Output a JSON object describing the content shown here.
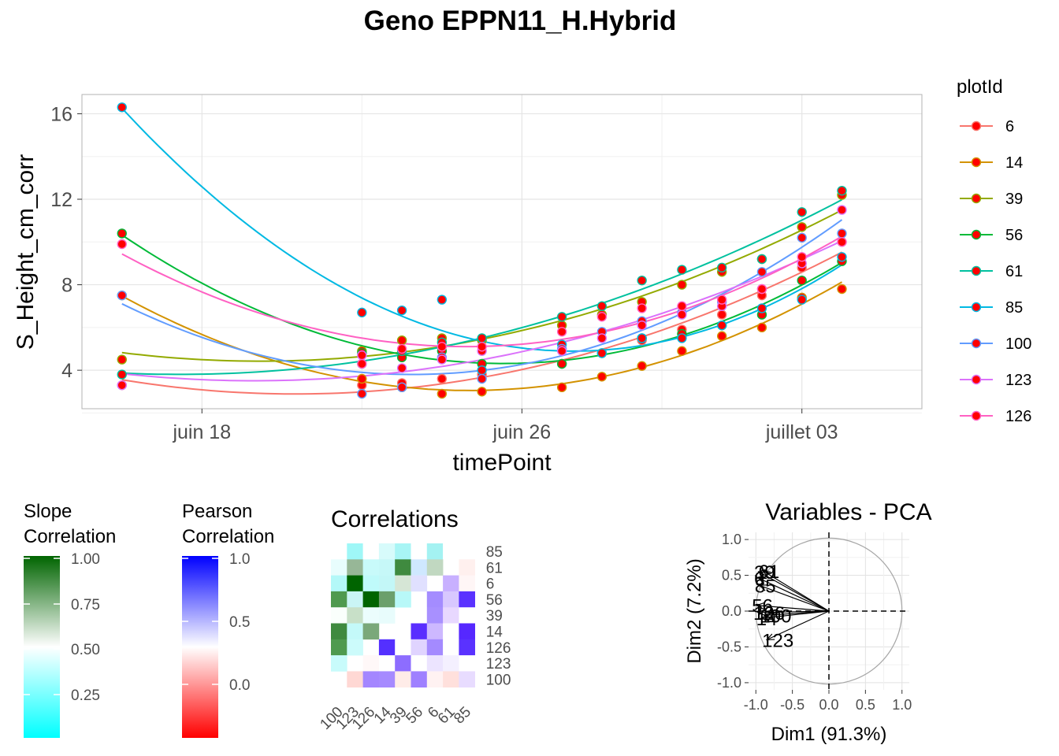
{
  "title": "Geno EPPN11_H.Hybrid",
  "colors": {
    "point": "#ff0000",
    "grid": "#e5e5e5",
    "panel_border": "#b3b3b3"
  },
  "chart_data": [
    {
      "type": "line",
      "xlabel": "timePoint",
      "ylabel": "S_Height_cm_corr",
      "x_tick_labels": [
        "juin 18",
        "juin 26",
        "juillet 03"
      ],
      "y_ticks": [
        4,
        8,
        12,
        16
      ],
      "xlim": [
        "2019-06-15",
        "2019-07-06"
      ],
      "ylim": [
        2.2,
        16.9
      ],
      "x_dates": [
        "2019-06-16",
        "2019-06-22",
        "2019-06-23",
        "2019-06-24",
        "2019-06-25",
        "2019-06-27",
        "2019-06-28",
        "2019-06-29",
        "2019-06-30",
        "2019-07-01",
        "2019-07-02",
        "2019-07-03",
        "2019-07-04"
      ],
      "legend": {
        "title": "plotId",
        "position": "right"
      },
      "series": [
        {
          "name": "6",
          "color": "#F8766D",
          "values": [
            3.3,
            3.3,
            3.4,
            3.6,
            3.8,
            4.3,
            4.8,
            5.4,
            5.9,
            6.6,
            7.5,
            8.8,
            10.0
          ]
        },
        {
          "name": "14",
          "color": "#D39200",
          "values": [
            7.5,
            3.6,
            3.2,
            2.9,
            3.0,
            3.2,
            3.7,
            4.2,
            4.9,
            5.6,
            6.0,
            7.4,
            7.8
          ]
        },
        {
          "name": "39",
          "color": "#93AA00",
          "values": [
            4.5,
            4.9,
            5.4,
            5.5,
            5.4,
            6.1,
            6.6,
            7.2,
            8.0,
            8.6,
            9.2,
            10.7,
            12.2
          ]
        },
        {
          "name": "56",
          "color": "#00BA38",
          "values": [
            10.4,
            4.8,
            4.6,
            4.9,
            4.3,
            4.3,
            4.8,
            5.5,
            5.7,
            6.1,
            6.6,
            8.2,
            9.1
          ]
        },
        {
          "name": "61",
          "color": "#00C19F",
          "values": [
            3.8,
            4.3,
            4.9,
            5.3,
            5.5,
            6.5,
            7.0,
            8.2,
            8.7,
            8.8,
            9.2,
            11.4,
            12.4
          ]
        },
        {
          "name": "85",
          "color": "#00B9E3",
          "values": [
            16.3,
            6.7,
            6.8,
            7.3,
            4.0,
            5.2,
            4.8,
            5.5,
            5.5,
            6.1,
            6.9,
            7.3,
            9.3
          ]
        },
        {
          "name": "100",
          "color": "#619CFF",
          "values": [
            7.5,
            2.9,
            3.2,
            4.6,
            3.6,
            5.0,
            5.8,
            6.3,
            6.7,
            7.2,
            8.6,
            10.2,
            10.4
          ]
        },
        {
          "name": "123",
          "color": "#DB72FB",
          "values": [
            3.3,
            4.7,
            4.1,
            4.5,
            4.9,
            4.9,
            5.5,
            6.1,
            6.6,
            7.0,
            7.8,
            9.0,
            11.5
          ]
        },
        {
          "name": "126",
          "color": "#FF61C3",
          "values": [
            9.9,
            4.3,
            5.0,
            5.1,
            5.1,
            5.8,
            6.5,
            6.9,
            7.0,
            7.3,
            7.8,
            9.3,
            10.0
          ]
        }
      ]
    },
    {
      "type": "heatmap",
      "title": "Correlations",
      "categories": [
        "100",
        "123",
        "126",
        "14",
        "39",
        "56",
        "6",
        "61",
        "85"
      ],
      "row_labels": [
        "85",
        "61",
        "6",
        "56",
        "39",
        "14",
        "126",
        "123",
        "100"
      ],
      "legends": [
        {
          "title": [
            "Slope",
            "Correlation"
          ],
          "ticks": [
            "1.00",
            "0.75",
            "0.50",
            "0.25"
          ],
          "colors": [
            "#006400",
            "#ffffff",
            "#00ffff"
          ]
        },
        {
          "title": [
            "Pearson",
            "Correlation"
          ],
          "ticks": [
            "1.0",
            "0.5",
            "0.0"
          ],
          "colors": [
            "#0000ff",
            "#ffffff",
            "#ff0000"
          ]
        }
      ],
      "cells": [
        [
          "#ffffff",
          "#9ff7f7",
          "#ffffff",
          "#d7fbfb",
          "#a8f5f5",
          "#ffffff",
          "#a4f2f2",
          "#ffffff",
          null
        ],
        [
          "#e8fdfd",
          "#97b797",
          "#c8fafa",
          "#c6f8f8",
          "#3f8a3f",
          "#cfe8ff",
          "#c1d8c1",
          null,
          "#fff0ee"
        ],
        [
          "#b3f8f8",
          "#006400",
          "#bffafa",
          "#c3f7f7",
          "#d6e6d6",
          "#e0e0ff",
          null,
          "#c8b0ff",
          "#fff6f6"
        ],
        [
          "#4f9a4f",
          "#caf5f5",
          "#006400",
          "#6b9f6b",
          "#b8f8f8",
          null,
          "#a48cff",
          "#d8c8ff",
          "#5a32ff"
        ],
        [
          "#fafffc",
          "#c8e0c8",
          "#ebfdfd",
          "#e8fcfc",
          null,
          "#ffffff",
          "#a890ff",
          "#e8d8ff",
          "#ffffff"
        ],
        [
          "#3f8a3f",
          "#c4f9f9",
          "#7aa87a",
          null,
          "#ffffff",
          "#5a2eff",
          "#cdb8ff",
          "#ffffff",
          "#5628ff"
        ],
        [
          "#4f9a4f",
          "#ccfbfb",
          null,
          "#5430ff",
          "#ffffff",
          "#e0d4ff",
          "#a48aff",
          "#ffffff",
          "#5a32ff"
        ],
        [
          "#c8fbfb",
          null,
          "#fff8f8",
          "#ffffff",
          "#8d6dff",
          "#ffffff",
          "#ece4ff",
          "#f4f0ff",
          "#ffffff"
        ],
        [
          null,
          "#ffd8d4",
          "#a486ff",
          "#a68aff",
          "#ffece8",
          "#9f80ff",
          "#fff2f2",
          "#ffe0dc",
          "#e8dcff"
        ]
      ]
    },
    {
      "type": "scatter",
      "title": "Variables - PCA",
      "xlabel": "Dim1 (91.3%)",
      "ylabel": "Dim2 (7.2%)",
      "xlim": [
        -1.1,
        1.1
      ],
      "ylim": [
        -1.1,
        1.1
      ],
      "ticks": [
        -1.0,
        -0.5,
        0.0,
        0.5,
        1.0
      ],
      "tick_labels": [
        "-1.0",
        "-0.5",
        "0.0",
        "0.5",
        "1.0"
      ],
      "vectors": [
        {
          "name": "6",
          "x": -0.96,
          "y": 0.46
        },
        {
          "name": "39",
          "x": -0.96,
          "y": 0.55
        },
        {
          "name": "61",
          "x": -0.9,
          "y": 0.56
        },
        {
          "name": "85",
          "x": -0.95,
          "y": 0.36
        },
        {
          "name": "56",
          "x": -0.99,
          "y": 0.08
        },
        {
          "name": "126",
          "x": -0.97,
          "y": -0.02
        },
        {
          "name": "14",
          "x": -0.93,
          "y": -0.1
        },
        {
          "name": "100",
          "x": -0.88,
          "y": -0.06
        },
        {
          "name": "123",
          "x": -0.85,
          "y": -0.4
        }
      ]
    }
  ]
}
